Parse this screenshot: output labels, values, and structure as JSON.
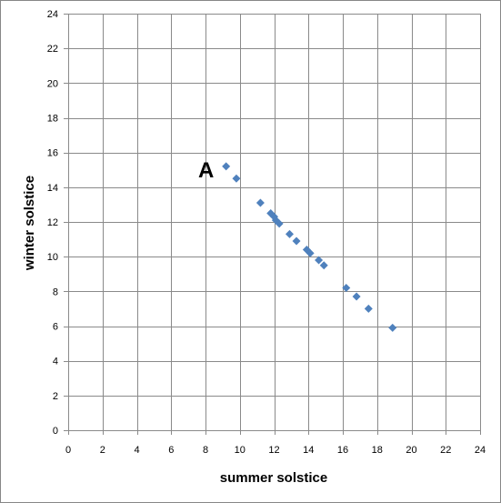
{
  "chart_data": {
    "type": "scatter",
    "xlabel": "summer solstice",
    "ylabel": "winter solstice",
    "xlim": [
      0,
      24
    ],
    "ylim": [
      0,
      24
    ],
    "xticks": [
      "0",
      "2",
      "4",
      "6",
      "8",
      "10",
      "12",
      "14",
      "16",
      "18",
      "20",
      "22",
      "24"
    ],
    "yticks": [
      "0",
      "2",
      "4",
      "6",
      "8",
      "10",
      "12",
      "14",
      "16",
      "18",
      "20",
      "22",
      "24"
    ],
    "grid": true,
    "marker": "diamond",
    "marker_color": "#4F81BD",
    "points": [
      {
        "x": 9.2,
        "y": 15.2
      },
      {
        "x": 9.8,
        "y": 14.5
      },
      {
        "x": 11.2,
        "y": 13.1
      },
      {
        "x": 11.8,
        "y": 12.5
      },
      {
        "x": 12.0,
        "y": 12.3
      },
      {
        "x": 12.1,
        "y": 12.1
      },
      {
        "x": 12.3,
        "y": 11.9
      },
      {
        "x": 12.9,
        "y": 11.3
      },
      {
        "x": 13.3,
        "y": 10.9
      },
      {
        "x": 13.9,
        "y": 10.4
      },
      {
        "x": 14.1,
        "y": 10.2
      },
      {
        "x": 14.6,
        "y": 9.8
      },
      {
        "x": 14.9,
        "y": 9.5
      },
      {
        "x": 16.2,
        "y": 8.2
      },
      {
        "x": 16.8,
        "y": 7.7
      },
      {
        "x": 17.5,
        "y": 7.0
      },
      {
        "x": 18.9,
        "y": 5.9
      }
    ],
    "annotations": [
      {
        "text": "A",
        "x": 8.0,
        "y": 15.0
      }
    ]
  }
}
